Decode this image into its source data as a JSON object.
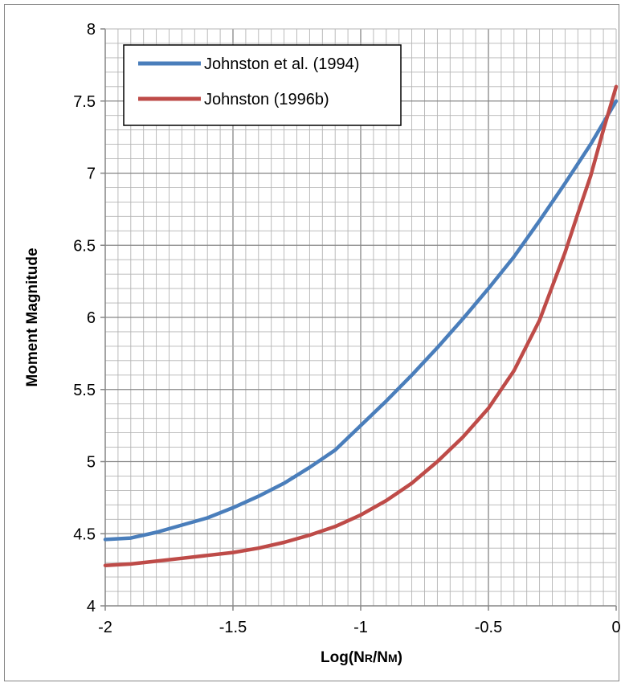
{
  "chart_data": {
    "type": "line",
    "xlabel": "Log(NR/NM)",
    "xlabel_parts": [
      {
        "text": "Log(N",
        "sub": false
      },
      {
        "text": "R",
        "sub": true
      },
      {
        "text": "/N",
        "sub": false
      },
      {
        "text": "M",
        "sub": true
      },
      {
        "text": ")",
        "sub": false
      }
    ],
    "ylabel": "Moment Magnitude",
    "xlim": [
      -2,
      0
    ],
    "ylim": [
      4,
      8
    ],
    "x_ticks": [
      "-2",
      "-1.5",
      "-1",
      "-0.5",
      "0"
    ],
    "y_ticks": [
      "4",
      "4.5",
      "5",
      "5.5",
      "6",
      "6.5",
      "7",
      "7.5",
      "8"
    ],
    "grid": true,
    "legend_position": "top-left",
    "series": [
      {
        "name": "Johnston et al. (1994)",
        "color": "#4a7ebb",
        "x": [
          -2.0,
          -1.9,
          -1.8,
          -1.7,
          -1.6,
          -1.5,
          -1.4,
          -1.3,
          -1.2,
          -1.1,
          -1.0,
          -0.9,
          -0.8,
          -0.7,
          -0.6,
          -0.5,
          -0.4,
          -0.3,
          -0.2,
          -0.1,
          0.0
        ],
        "y": [
          4.46,
          4.47,
          4.51,
          4.56,
          4.61,
          4.68,
          4.76,
          4.85,
          4.96,
          5.08,
          5.25,
          5.42,
          5.6,
          5.79,
          5.99,
          6.2,
          6.42,
          6.67,
          6.93,
          7.2,
          7.5
        ]
      },
      {
        "name": "Johnston (1996b)",
        "color": "#be4b48",
        "x": [
          -2.0,
          -1.9,
          -1.8,
          -1.7,
          -1.6,
          -1.5,
          -1.4,
          -1.3,
          -1.2,
          -1.1,
          -1.0,
          -0.9,
          -0.8,
          -0.7,
          -0.6,
          -0.5,
          -0.4,
          -0.3,
          -0.2,
          -0.15,
          -0.1,
          -0.05,
          0.0
        ],
        "y": [
          4.28,
          4.29,
          4.31,
          4.33,
          4.35,
          4.37,
          4.4,
          4.44,
          4.49,
          4.55,
          4.63,
          4.73,
          4.85,
          5.0,
          5.17,
          5.37,
          5.63,
          5.98,
          6.45,
          6.72,
          6.98,
          7.3,
          7.6
        ]
      }
    ]
  }
}
